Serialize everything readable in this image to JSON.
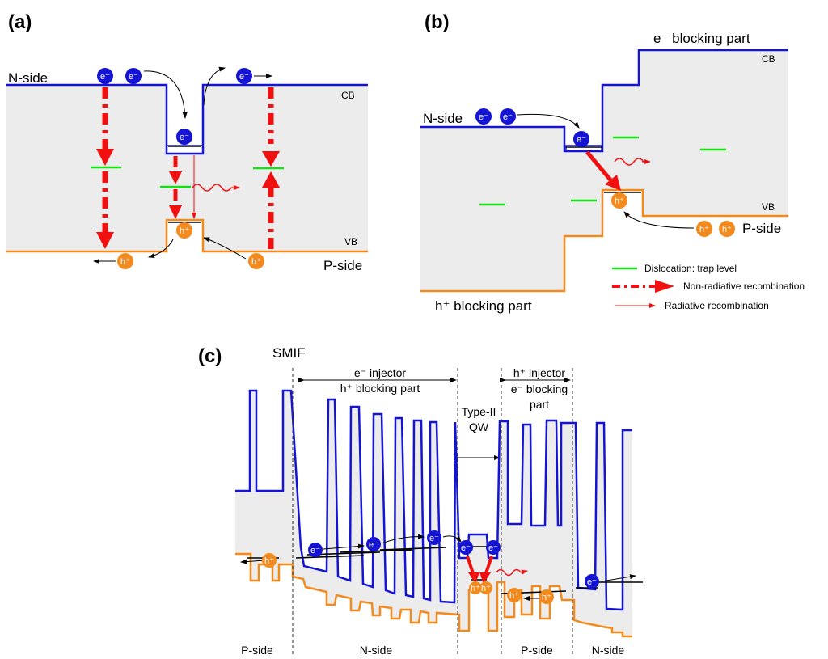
{
  "panels": {
    "a": {
      "label": "(a)",
      "n_side": "N-side",
      "p_side": "P-side",
      "cb": "CB",
      "vb": "VB"
    },
    "b": {
      "label": "(b)",
      "e_blocking": "e⁻ blocking part",
      "h_blocking": "h⁺ blocking part",
      "n_side": "N-side",
      "p_side": "P-side",
      "cb": "CB",
      "vb": "VB",
      "legend": {
        "trap": "Dislocation: trap level",
        "nonrad": "Non-radiative recombination",
        "rad": "Radiative recombination"
      }
    },
    "c": {
      "label": "(c)",
      "smif": "SMIF",
      "e_injector": "e⁻ injector",
      "h_blocking": "h⁺ blocking part",
      "h_injector": "h⁺ injector",
      "e_blocking_1": "e⁻ blocking",
      "e_blocking_2": "part",
      "qw_1": "Type-II",
      "qw_2": "QW",
      "bottom": [
        "P-side",
        "N-side",
        "P-side",
        "N-side"
      ]
    }
  },
  "carriers": {
    "electron": "e⁻",
    "hole": "h⁺"
  },
  "colors": {
    "conduction_band": "#1414d2",
    "valence_band": "#f38a1e",
    "trap_level": "#16e016",
    "recombination": "#f01010",
    "bandgap_fill": "#ececec"
  }
}
